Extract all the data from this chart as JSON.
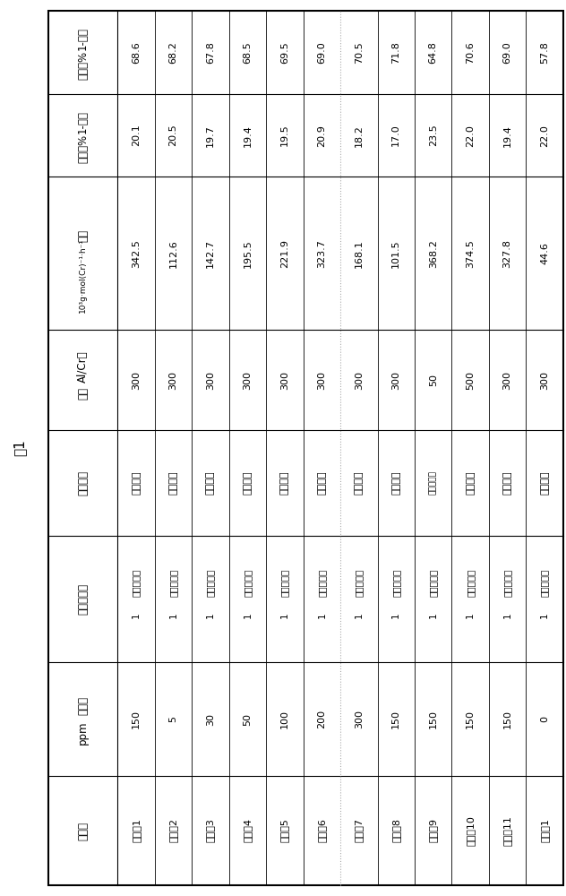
{
  "title": "表1",
  "col_headers_line1": [
    "实施例",
    "水含量",
    "配体化合物",
    "助催化剂",
    "Al/Cr摸",
    "活性",
    "1-己烯",
    "1-辛烯"
  ],
  "col_headers_line2": [
    "",
    "ppm",
    "",
    "",
    "尔比",
    "10³g·mol(Cr)⁻¹·h⁻¹",
    "选择性%",
    "选择性%"
  ],
  "rows": [
    [
      "实施例1",
      "150",
      "配体化合物 1",
      "三乙基铝",
      "300",
      "342.5",
      "20.1",
      "68.6"
    ],
    [
      "实施例2",
      "5",
      "配体化合物 1",
      "三乙基铝",
      "300",
      "112.6",
      "20.5",
      "68.2"
    ],
    [
      "实施例3",
      "30",
      "配体化合物 1",
      "三乙基铝",
      "300",
      "142.7",
      "19.7",
      "67.8"
    ],
    [
      "实施例4",
      "50",
      "配体化合物 1",
      "三乙基铝",
      "300",
      "195.5",
      "19.4",
      "68.5"
    ],
    [
      "实施例5",
      "100",
      "配体化合物 1",
      "三乙基铝",
      "300",
      "221.9",
      "19.5",
      "69.5"
    ],
    [
      "实施例6",
      "200",
      "配体化合物 1",
      "三乙基铝",
      "300",
      "323.7",
      "20.9",
      "69.0"
    ],
    [
      "实施例7",
      "300",
      "配体化合物 1",
      "三乙基铝",
      "300",
      "168.1",
      "18.2",
      "70.5"
    ],
    [
      "实施例8",
      "150",
      "配体化合物 1",
      "三乙基铝",
      "300",
      "101.5",
      "17.0",
      "71.8"
    ],
    [
      "实施例9",
      "150",
      "配体化合物 1",
      "甲基铝氧烷",
      "50",
      "368.2",
      "23.5",
      "64.8"
    ],
    [
      "实施例10",
      "150",
      "配体化合物 1",
      "三乙基铝",
      "500",
      "374.5",
      "22.0",
      "70.6"
    ],
    [
      "实施例11",
      "150",
      "配体化合物 1",
      "三乙基铝",
      "300",
      "327.8",
      "19.4",
      "69.0"
    ],
    [
      "对比例1",
      "0",
      "配体化合物 1",
      "三乙基铝",
      "300",
      "44.6",
      "22.0",
      "57.8"
    ]
  ],
  "bg_color": "#ffffff",
  "border_color": "#000000",
  "text_color": "#000000",
  "dashed_after_col": 6,
  "font_size": 8.0,
  "header_font_size": 8.5,
  "title_font_size": 11
}
